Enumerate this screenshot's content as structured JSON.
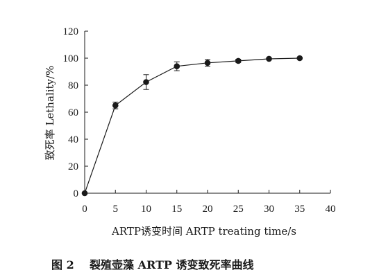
{
  "chart_data": {
    "type": "line",
    "x": [
      0,
      5,
      10,
      15,
      20,
      25,
      30,
      35
    ],
    "series": [
      {
        "values": [
          0,
          65.0,
          82.3,
          94.0,
          96.5,
          98.0,
          99.5,
          100.0
        ],
        "error": [
          0,
          2.5,
          5.5,
          3.3,
          2.5,
          1.2,
          0.8,
          0.6
        ]
      }
    ],
    "xlim": [
      0,
      40
    ],
    "ylim": [
      0,
      120
    ],
    "xticks": [
      0,
      5,
      10,
      15,
      20,
      25,
      30,
      35,
      40
    ],
    "yticks": [
      0,
      20,
      40,
      60,
      80,
      100,
      120
    ],
    "xlabel": "ARTP诱变时间  ARTP treating time/s",
    "ylabel": "致死率  Lethality/%",
    "grid": false,
    "legend": "none",
    "marker": "filled-circle",
    "line_color": "#1a1a1a"
  },
  "caption": "图 2    裂殖壶藻 ARTP 诱变致死率曲线"
}
